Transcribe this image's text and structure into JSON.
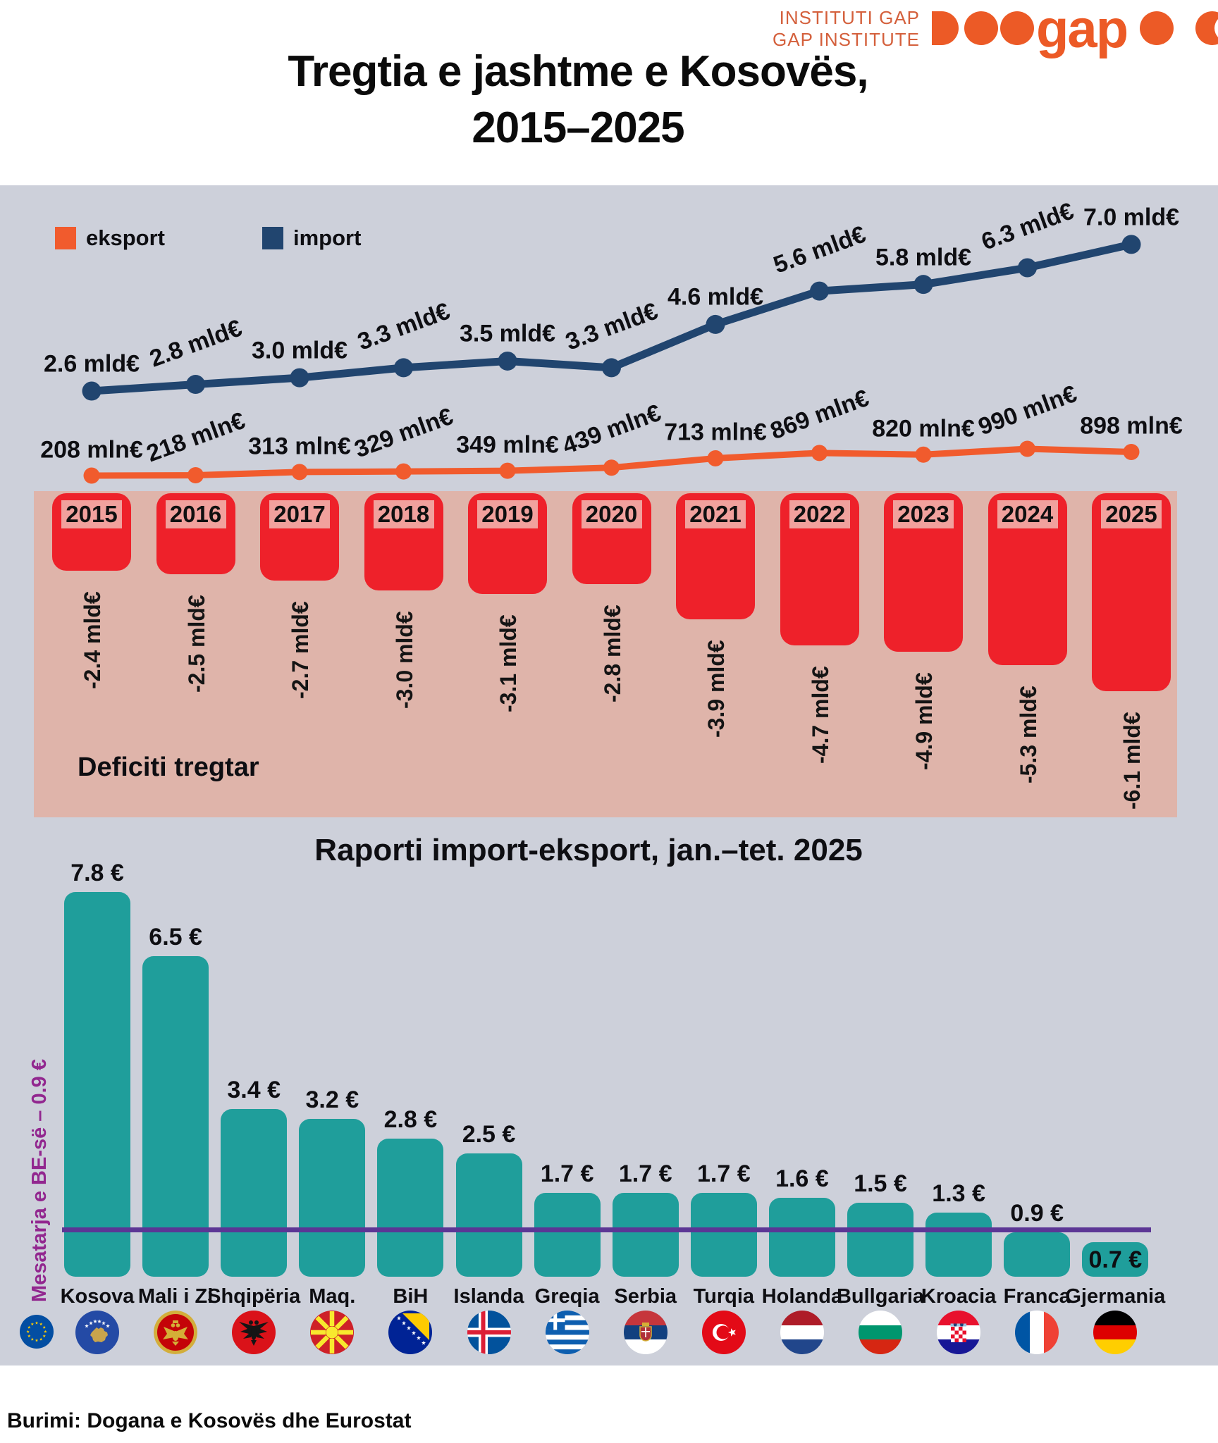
{
  "brand": {
    "name_line1": "INSTITUTI GAP",
    "name_line2": "GAP INSTITUTE",
    "logo_word": "gap"
  },
  "title": {
    "line1": "Tregtia e jashtme e Kosovës,",
    "line2": "2015–2025"
  },
  "legend": {
    "eksport_label": "eksport",
    "import_label": "import"
  },
  "colors": {
    "export_orange": "#F15B2D",
    "import_navy": "#21456F",
    "deficit_red": "#EE212A",
    "deficit_band_pink": "#DFB4AA",
    "panel_gray": "#CDD0DA",
    "ratio_teal": "#1F9E9B",
    "reference_line_purple": "#5C3695",
    "reference_text_purple": "#92278F",
    "brand_orange": "#EC5A26"
  },
  "chart_data": [
    {
      "type": "line",
      "title": "Tregtia e jashtme e Kosovës, 2015–2025",
      "categories": [
        "2015",
        "2016",
        "2017",
        "2018",
        "2019",
        "2020",
        "2021",
        "2022",
        "2023",
        "2024",
        "2025"
      ],
      "grid": false,
      "legend_position": "top-left",
      "series": [
        {
          "name": "import",
          "color": "#21456F",
          "unit": "mld€",
          "values": [
            2.6,
            2.8,
            3.0,
            3.3,
            3.5,
            3.3,
            4.6,
            5.6,
            5.8,
            6.3,
            7.0
          ],
          "labels": [
            "2.6 mld€",
            "2.8 mld€",
            "3.0 mld€",
            "3.3 mld€",
            "3.5 mld€",
            "3.3 mld€",
            "4.6 mld€",
            "5.6 mld€",
            "5.8 mld€",
            "6.3 mld€",
            "7.0 mld€"
          ]
        },
        {
          "name": "eksport",
          "color": "#F15B2D",
          "unit": "mln€",
          "values": [
            208,
            218,
            313,
            329,
            349,
            439,
            713,
            869,
            820,
            990,
            898
          ],
          "labels": [
            "208 mln€",
            "218 mln€",
            "313 mln€",
            "329 mln€",
            "349 mln€",
            "439 mln€",
            "713 mln€",
            "869 mln€",
            "820 mln€",
            "990 mln€",
            "898 mln€"
          ]
        }
      ]
    },
    {
      "type": "bar",
      "name": "trade-deficit",
      "title": "Deficiti tregtar",
      "unit": "mld€",
      "categories": [
        "2015",
        "2016",
        "2017",
        "2018",
        "2019",
        "2020",
        "2021",
        "2022",
        "2023",
        "2024",
        "2025"
      ],
      "values": [
        -2.4,
        -2.5,
        -2.7,
        -3.0,
        -3.1,
        -2.8,
        -3.9,
        -4.7,
        -4.9,
        -5.3,
        -6.1
      ],
      "labels": [
        "-2.4 mld€",
        "-2.5 mld€",
        "-2.7 mld€",
        "-3.0 mld€",
        "-3.1 mld€",
        "-2.8 mld€",
        "-3.9 mld€",
        "-4.7 mld€",
        "-4.9 mld€",
        "-5.3 mld€",
        "-6.1 mld€"
      ]
    },
    {
      "type": "bar",
      "name": "import-export-ratio",
      "title": "Raporti import-eksport, jan.–tet. 2025",
      "unit": "€",
      "categories": [
        "Kosova",
        "Mali i Zi",
        "Shqipëria",
        "Maq.",
        "BiH",
        "Islanda",
        "Greqia",
        "Serbia",
        "Turqia",
        "Holanda",
        "Bullgaria",
        "Kroacia",
        "Franca",
        "Gjermania"
      ],
      "values": [
        7.8,
        6.5,
        3.4,
        3.2,
        2.8,
        2.5,
        1.7,
        1.7,
        1.7,
        1.6,
        1.5,
        1.3,
        0.9,
        0.7
      ],
      "labels": [
        "7.8 €",
        "6.5 €",
        "3.4 €",
        "3.2 €",
        "2.8 €",
        "2.5 €",
        "1.7 €",
        "1.7 €",
        "1.7 €",
        "1.6 €",
        "1.5 €",
        "1.3 €",
        "0.9 €",
        "0.7 €"
      ],
      "flags": [
        "kosovo",
        "montenegro",
        "albania",
        "macedonia",
        "bosnia",
        "iceland",
        "greece",
        "serbia",
        "turkey",
        "netherlands",
        "bulgaria",
        "croatia",
        "france",
        "germany"
      ],
      "reference_line": {
        "label": "Mesatarja e BE-së – 0.9 €",
        "value": 0.9,
        "flag": "eu"
      }
    }
  ],
  "source": "Burimi: Dogana e Kosovës dhe Eurostat"
}
